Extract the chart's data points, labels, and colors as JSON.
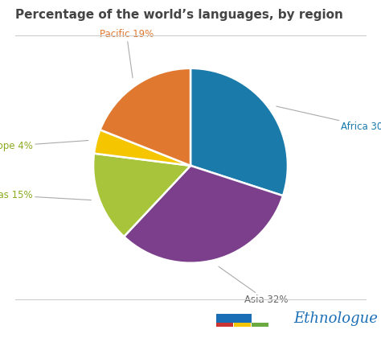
{
  "title": "Percentage of the world’s languages, by region",
  "slices": [
    {
      "label": "Africa",
      "value": 30,
      "color": "#1a7aaa",
      "label_color": "#1a7aaa"
    },
    {
      "label": "Asia",
      "value": 32,
      "color": "#7b3f8c",
      "label_color": "#666666"
    },
    {
      "label": "Americas",
      "value": 15,
      "color": "#a8c43a",
      "label_color": "#8aaa20"
    },
    {
      "label": "Europe",
      "value": 4,
      "color": "#f5c500",
      "label_color": "#8aaa20"
    },
    {
      "label": "Pacific",
      "value": 19,
      "color": "#e07830",
      "label_color": "#e07830"
    }
  ],
  "startangle": 90,
  "background_color": "#ffffff",
  "title_fontsize": 11,
  "title_color": "#444444",
  "label_fontsize": 8.5,
  "line_color": "#cccccc",
  "logo_colors": {
    "blue": "#1a6eb5",
    "red": "#cc3333",
    "yellow": "#f5c500",
    "green": "#6aaa40"
  },
  "logo_text": "Ethnologue",
  "logo_text_color": "#1a6eb5",
  "logo_fontsize": 13
}
